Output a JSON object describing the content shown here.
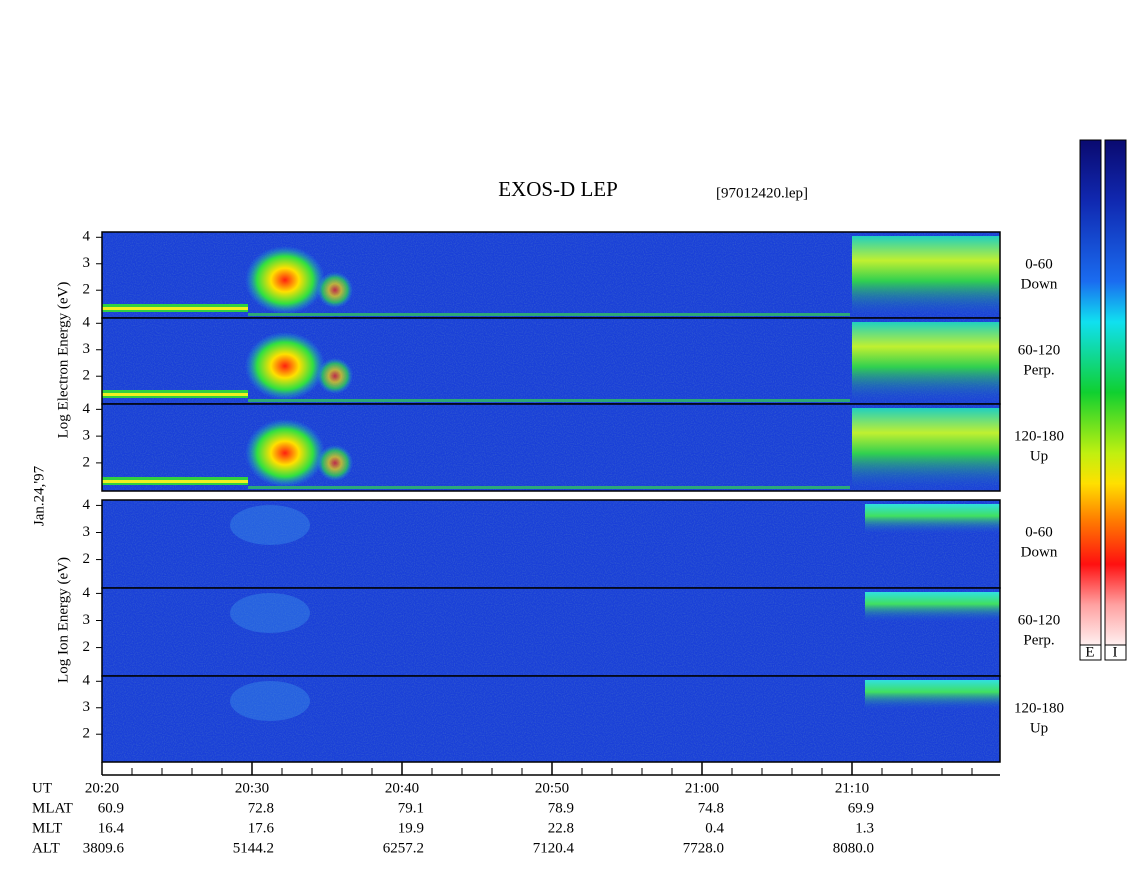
{
  "chart_data": {
    "type": "spectrogram",
    "title": "EXOS-D LEP",
    "subtitle": "[97012420.lep]",
    "date_label": "Jan.24,'97",
    "electron_axis_label": "Log Electron Energy (eV)",
    "ion_axis_label": "Log Ion Energy (eV)",
    "electron_panels": [
      {
        "pitch": "0-60",
        "direction": "Down"
      },
      {
        "pitch": "60-120",
        "direction": "Perp."
      },
      {
        "pitch": "120-180",
        "direction": "Up"
      }
    ],
    "ion_panels": [
      {
        "pitch": "0-60",
        "direction": "Down"
      },
      {
        "pitch": "60-120",
        "direction": "Perp."
      },
      {
        "pitch": "120-180",
        "direction": "Up"
      }
    ],
    "ylim": [
      0.95,
      4.2
    ],
    "yticks": [
      2,
      3,
      4
    ],
    "x_label": "UT",
    "xticks": [
      "20:20",
      "20:30",
      "20:40",
      "20:50",
      "21:00",
      "21:10"
    ],
    "ephemeris": [
      {
        "name": "MLAT",
        "values": [
          "60.9",
          "72.8",
          "79.1",
          "78.9",
          "74.8",
          "69.9"
        ]
      },
      {
        "name": "MLT",
        "values": [
          "16.4",
          "17.6",
          "19.9",
          "22.8",
          "0.4",
          "1.3"
        ]
      },
      {
        "name": "ALT",
        "values": [
          "3809.6",
          "5144.2",
          "6257.2",
          "7120.4",
          "7728.0",
          "8080.0"
        ]
      }
    ],
    "colorbar_labels": [
      "E",
      "I"
    ]
  }
}
